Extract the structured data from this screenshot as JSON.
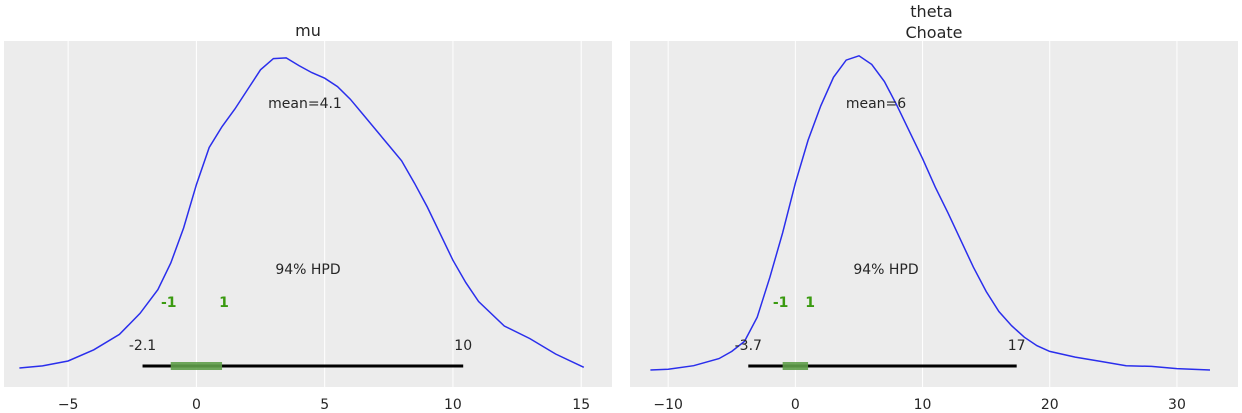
{
  "chart_data": [
    {
      "type": "line",
      "title": "mu",
      "xlim": [
        -7.5,
        16.2
      ],
      "xticks": [
        -5,
        0,
        5,
        10,
        15
      ],
      "xtick_labels": [
        "−5",
        "0",
        "5",
        "10",
        "15"
      ],
      "grid": true,
      "colors": {
        "line": "#2a2eec",
        "hpd": "#000000",
        "rope": "#5f9e4a",
        "rope_label": "#3a9a10",
        "background": "#ececec"
      },
      "density": {
        "x": [
          -6.9,
          -6.0,
          -5.0,
          -4.0,
          -3.0,
          -2.2,
          -1.5,
          -1.0,
          -0.5,
          0.0,
          0.5,
          1.0,
          1.5,
          2.0,
          2.5,
          3.0,
          3.5,
          4.0,
          4.5,
          5.0,
          5.5,
          6.0,
          6.5,
          7.0,
          7.5,
          8.0,
          8.5,
          9.0,
          9.5,
          10.0,
          10.5,
          11.0,
          12.0,
          13.0,
          14.0,
          15.1
        ],
        "y": [
          0.0,
          0.003,
          0.01,
          0.026,
          0.048,
          0.078,
          0.112,
          0.15,
          0.2,
          0.262,
          0.315,
          0.345,
          0.37,
          0.398,
          0.426,
          0.442,
          0.443,
          0.432,
          0.422,
          0.414,
          0.402,
          0.384,
          0.362,
          0.34,
          0.318,
          0.296,
          0.264,
          0.23,
          0.192,
          0.154,
          0.122,
          0.095,
          0.06,
          0.042,
          0.02,
          0.001
        ]
      },
      "mean_label": "mean=4.1",
      "hpd_label": "94% HPD",
      "hpd_interval": [
        -2.1,
        10.4
      ],
      "hpd_low_label": "-2.1",
      "hpd_high_label": "10",
      "rope": [
        -1,
        1
      ],
      "rope_low_label": "-1",
      "rope_high_label": "1"
    },
    {
      "type": "line",
      "title": "theta\nChoate",
      "title_lines": [
        "theta",
        "Choate"
      ],
      "xlim": [
        -13.0,
        34.8
      ],
      "xticks": [
        -10,
        0,
        10,
        20,
        30
      ],
      "xtick_labels": [
        "−10",
        "0",
        "10",
        "20",
        "30"
      ],
      "grid": true,
      "colors": {
        "line": "#2a2eec",
        "hpd": "#000000",
        "rope": "#5f9e4a",
        "rope_label": "#3a9a10",
        "background": "#ececec"
      },
      "density": {
        "x": [
          -11.4,
          -10.0,
          -8.0,
          -6.0,
          -5.0,
          -4.0,
          -3.0,
          -2.0,
          -1.0,
          0.0,
          1.0,
          2.0,
          3.0,
          4.0,
          5.0,
          6.0,
          7.0,
          8.0,
          9.0,
          10.0,
          11.0,
          12.0,
          13.0,
          14.0,
          15.0,
          16.0,
          17.0,
          18.0,
          19.0,
          20.0,
          22.0,
          24.0,
          26.0,
          28.0,
          30.0,
          32.6
        ],
        "y": [
          0.0,
          0.001,
          0.006,
          0.016,
          0.026,
          0.04,
          0.074,
          0.13,
          0.192,
          0.262,
          0.322,
          0.37,
          0.41,
          0.434,
          0.44,
          0.428,
          0.404,
          0.37,
          0.333,
          0.296,
          0.256,
          0.22,
          0.182,
          0.144,
          0.11,
          0.082,
          0.062,
          0.046,
          0.034,
          0.026,
          0.018,
          0.012,
          0.006,
          0.005,
          0.002,
          0.0
        ]
      },
      "mean_label": "mean=6",
      "hpd_label": "94% HPD",
      "hpd_interval": [
        -3.7,
        17.4
      ],
      "hpd_low_label": "-3.7",
      "hpd_high_label": "17",
      "rope": [
        -1,
        1
      ],
      "rope_low_label": "-1",
      "rope_high_label": "1"
    }
  ]
}
